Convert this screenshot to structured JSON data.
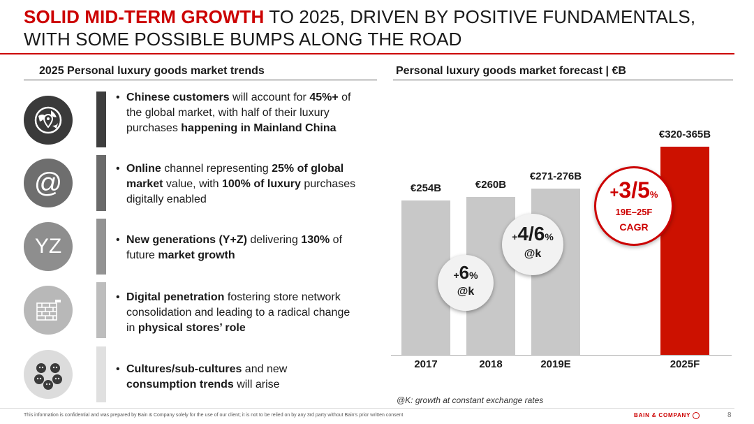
{
  "title": {
    "accent": "SOLID MID-TERM GROWTH",
    "rest_line1": " TO 2025, DRIVEN BY POSITIVE FUNDAMENTALS,",
    "line2": "WITH SOME POSSIBLE BUMPS ALONG THE ROAD"
  },
  "left": {
    "heading": "2025 Personal luxury goods market trends",
    "items": [
      {
        "icon": "globe-pin-icon",
        "parts": [
          [
            "Chinese customers",
            true
          ],
          [
            " will account for ",
            false
          ],
          [
            "45%+",
            true
          ],
          [
            " of the global market, with half of their luxury purchases ",
            false
          ],
          [
            "happening in Mainland China",
            true
          ]
        ]
      },
      {
        "icon": "at-sign-icon",
        "parts": [
          [
            "Online",
            true
          ],
          [
            " channel representing ",
            false
          ],
          [
            "25% of global market",
            true
          ],
          [
            " value, with ",
            false
          ],
          [
            "100% of luxury",
            true
          ],
          [
            " purchases digitally enabled",
            false
          ]
        ]
      },
      {
        "icon": "yz-generations-icon",
        "icon_text": "YZ",
        "parts": [
          [
            "New generations (Y+Z)",
            true
          ],
          [
            " delivering ",
            false
          ],
          [
            "130%",
            true
          ],
          [
            " of future ",
            false
          ],
          [
            "market growth",
            true
          ]
        ]
      },
      {
        "icon": "store-brick-icon",
        "parts": [
          [
            "Digital penetration",
            true
          ],
          [
            " fostering store network consolidation and leading to a radical change in ",
            false
          ],
          [
            "physical stores’ role",
            true
          ]
        ]
      },
      {
        "icon": "people-faces-icon",
        "parts": [
          [
            "Cultures/sub-cultures",
            true
          ],
          [
            " and new ",
            false
          ],
          [
            "consumption trends",
            true
          ],
          [
            " will arise",
            false
          ]
        ]
      }
    ]
  },
  "right": {
    "heading": "Personal luxury goods market forecast | €B",
    "footnote": "@K: growth at constant exchange rates"
  },
  "chart_data": {
    "type": "bar",
    "title": "Personal luxury goods market forecast | €B",
    "categories": [
      "2017",
      "2018",
      "2019E",
      "2025F"
    ],
    "values": [
      254,
      260,
      273.5,
      342.5
    ],
    "labels": [
      "€254B",
      "€260B",
      "€271-276B",
      "€320-365B"
    ],
    "ylim": [
      0,
      360
    ],
    "colors": [
      "#c8c8c8",
      "#c8c8c8",
      "#c8c8c8",
      "#cc1100"
    ],
    "annotations": [
      {
        "big": "6",
        "prefix": "+",
        "suffix": "%",
        "sub": "@k"
      },
      {
        "big": "4/6",
        "prefix": "+",
        "suffix": "%",
        "sub": "@k"
      },
      {
        "big": "3/5",
        "prefix": "+",
        "suffix": "%",
        "sub1": "19E–25F",
        "sub2": "CAGR"
      }
    ]
  },
  "footer": {
    "confidential": "This information is confidential and was prepared by Bain & Company solely for the use of our client; it is not to be relied on by any 3rd party without Bain's prior written consent",
    "brand": "BAIN & COMPANY",
    "page": "8"
  },
  "colors": {
    "accent": "#cc0000",
    "bar_grey": "#c8c8c8",
    "bar_red": "#cc1100"
  }
}
